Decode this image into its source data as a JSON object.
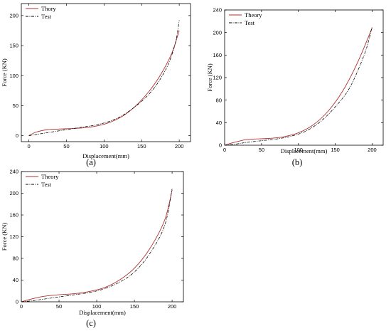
{
  "colors": {
    "theory": "#b03030",
    "test": "#000000"
  },
  "chart_data": [
    {
      "type": "line",
      "panel_label": "(a)",
      "xlabel": "Displacement(mm)",
      "ylabel": "Force (KN)",
      "xlim": [
        -10,
        215
      ],
      "ylim": [
        -10,
        220
      ],
      "x_ticks": [
        0,
        50,
        100,
        150,
        200
      ],
      "y_ticks": [
        0,
        50,
        100,
        150,
        200
      ],
      "legend": "top-left",
      "series": [
        {
          "name": "Thory",
          "style": "solid",
          "x": [
            0,
            10,
            25,
            40,
            60,
            80,
            100,
            115,
            130,
            145,
            160,
            175,
            190,
            200
          ],
          "y": [
            0,
            6,
            10,
            11,
            12,
            14,
            19,
            26,
            37,
            53,
            74,
            101,
            137,
            175
          ]
        },
        {
          "name": "Test",
          "style": "dashdot",
          "x": [
            0,
            15,
            30,
            50,
            70,
            90,
            110,
            125,
            140,
            155,
            170,
            185,
            195,
            200
          ],
          "y": [
            0,
            3,
            6,
            10,
            14,
            18,
            25,
            34,
            47,
            63,
            85,
            118,
            155,
            192
          ]
        }
      ]
    },
    {
      "type": "line",
      "panel_label": "(b)",
      "xlabel": "Displacement(mm)",
      "ylabel": "Force (KN)",
      "xlim": [
        0,
        215
      ],
      "ylim": [
        0,
        240
      ],
      "x_ticks": [
        0,
        50,
        100,
        150,
        200
      ],
      "y_ticks": [
        0,
        40,
        80,
        120,
        160,
        200,
        240
      ],
      "legend": "top-left",
      "series": [
        {
          "name": "Theory",
          "style": "solid",
          "x": [
            0,
            10,
            25,
            30,
            40,
            60,
            80,
            100,
            120,
            140,
            160,
            180,
            200
          ],
          "y": [
            0,
            4,
            9,
            10,
            11,
            12,
            15,
            22,
            36,
            60,
            96,
            146,
            208
          ]
        },
        {
          "name": "Test",
          "style": "dashdot",
          "x": [
            0,
            15,
            30,
            50,
            70,
            90,
            110,
            130,
            150,
            170,
            190,
            200
          ],
          "y": [
            0,
            2,
            5,
            8,
            11,
            16,
            25,
            42,
            68,
            103,
            163,
            210
          ]
        }
      ]
    },
    {
      "type": "line",
      "panel_label": "(c)",
      "xlabel": "Displacement(mm)",
      "ylabel": "Force (KN)",
      "xlim": [
        0,
        215
      ],
      "ylim": [
        0,
        240
      ],
      "x_ticks": [
        0,
        50,
        100,
        150,
        200
      ],
      "y_ticks": [
        0,
        40,
        80,
        120,
        160,
        200,
        240
      ],
      "legend": "top-left",
      "series": [
        {
          "name": "Theory",
          "style": "solid",
          "x": [
            0,
            10,
            25,
            35,
            50,
            70,
            90,
            110,
            130,
            150,
            170,
            190,
            200
          ],
          "y": [
            0,
            4,
            9,
            11,
            13,
            15,
            19,
            26,
            40,
            62,
            97,
            150,
            206
          ]
        },
        {
          "name": "Test",
          "style": "dashdot",
          "x": [
            0,
            15,
            30,
            50,
            70,
            90,
            110,
            130,
            150,
            170,
            190,
            200
          ],
          "y": [
            0,
            2,
            5,
            9,
            13,
            17,
            24,
            36,
            55,
            88,
            140,
            208
          ]
        }
      ]
    }
  ]
}
